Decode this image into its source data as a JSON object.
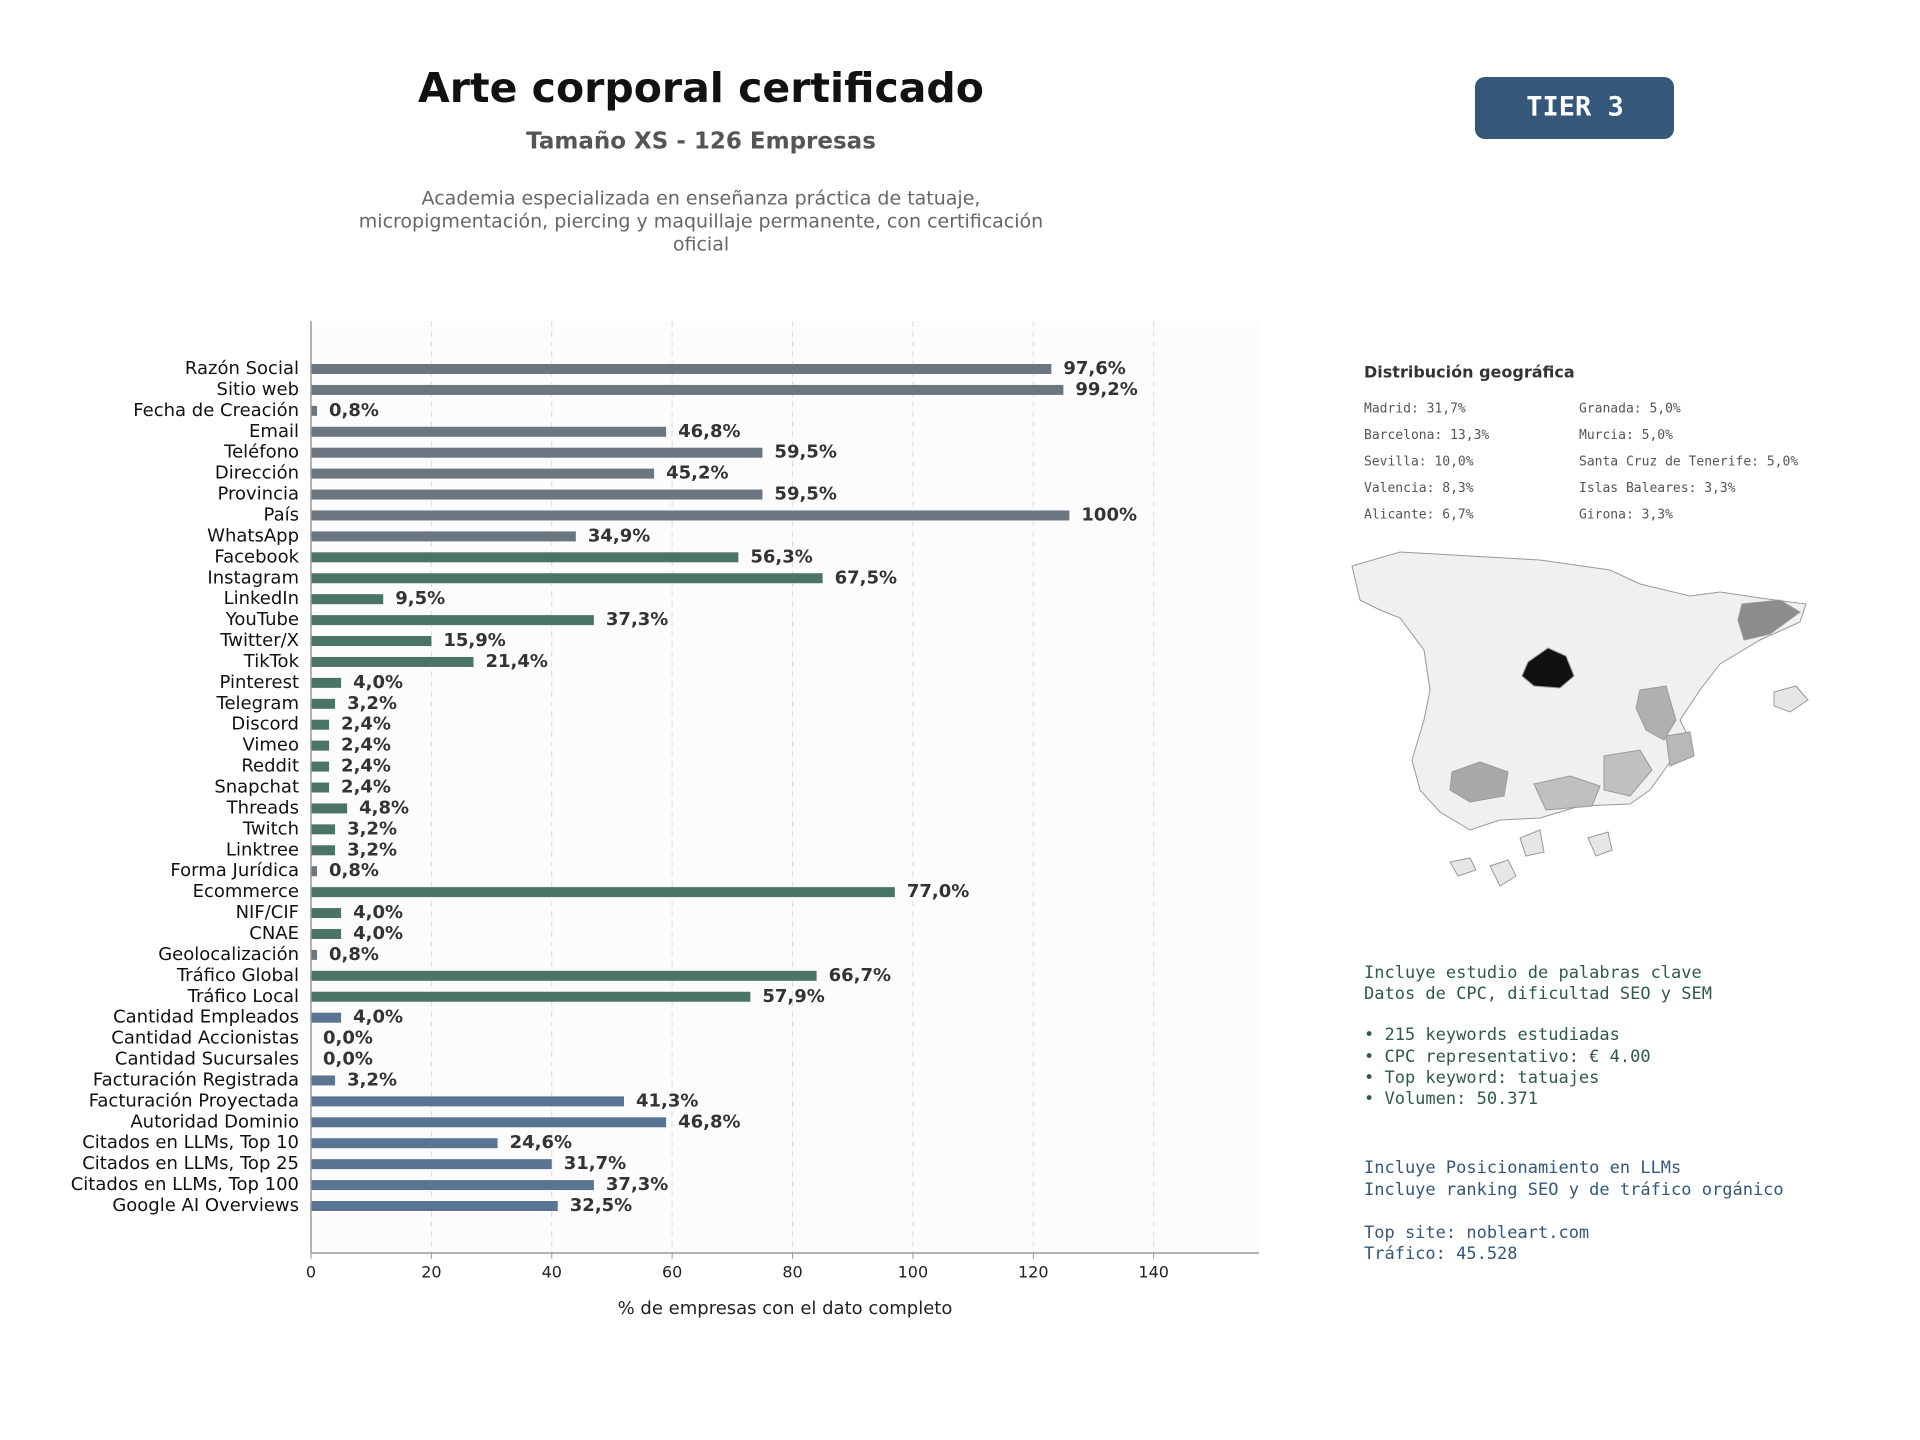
{
  "header": {
    "title": "Arte corporal certificado",
    "subtitle": "Tamaño XS - 126 Empresas",
    "description": [
      "Academia especializada en enseñanza práctica de tatuaje,",
      "micropigmentación, piercing y maquillaje permanente, con certificación",
      "oficial"
    ]
  },
  "badge": "TIER 3",
  "chart_data": {
    "type": "barh",
    "xlabel": "% de empresas con el dato completo",
    "categories": [
      "Razón Social",
      "Sitio web",
      "Fecha de Creación",
      "Email",
      "Teléfono",
      "Dirección",
      "Provincia",
      "País",
      "WhatsApp",
      "Facebook",
      "Instagram",
      "LinkedIn",
      "YouTube",
      "Twitter/X",
      "TikTok",
      "Pinterest",
      "Telegram",
      "Discord",
      "Vimeo",
      "Reddit",
      "Snapchat",
      "Threads",
      "Twitch",
      "Linktree",
      "Forma Jurídica",
      "Ecommerce",
      "NIF/CIF",
      "CNAE",
      "Geolocalización",
      "Tráfico Global",
      "Tráfico Local",
      "Cantidad Empleados",
      "Cantidad Accionistas",
      "Cantidad Sucursales",
      "Facturación Registrada",
      "Facturación Proyectada",
      "Autoridad Dominio",
      "Citados en LLMs, Top 10",
      "Citados en LLMs, Top 25",
      "Citados en LLMs, Top 100",
      "Google AI Overviews"
    ],
    "values": [
      123,
      125,
      1,
      59,
      75,
      57,
      75,
      126,
      44,
      71,
      85,
      12,
      47,
      20,
      27,
      5,
      4,
      3,
      3,
      3,
      3,
      6,
      4,
      4,
      1,
      97,
      5,
      5,
      1,
      84,
      73,
      5,
      0,
      0,
      4,
      52,
      59,
      31,
      40,
      47,
      41
    ],
    "value_labels": [
      "97,6%",
      "99,2%",
      "0,8%",
      "46,8%",
      "59,5%",
      "45,2%",
      "59,5%",
      "100%",
      "34,9%",
      "56,3%",
      "67,5%",
      "9,5%",
      "37,3%",
      "15,9%",
      "21,4%",
      "4,0%",
      "3,2%",
      "2,4%",
      "2,4%",
      "2,4%",
      "2,4%",
      "4,8%",
      "3,2%",
      "3,2%",
      "0,8%",
      "77,0%",
      "4,0%",
      "4,0%",
      "0,8%",
      "66,7%",
      "57,9%",
      "4,0%",
      "0,0%",
      "0,0%",
      "3,2%",
      "41,3%",
      "46,8%",
      "24,6%",
      "31,7%",
      "37,3%",
      "32,5%"
    ],
    "colors": [
      "#6c7680",
      "#6c7680",
      "#6c7680",
      "#6c7680",
      "#6c7680",
      "#6c7680",
      "#6c7680",
      "#6c7680",
      "#6c7680",
      "#4a7566",
      "#4a7566",
      "#4a7566",
      "#4a7566",
      "#4a7566",
      "#4a7566",
      "#4a7566",
      "#4a7566",
      "#4a7566",
      "#4a7566",
      "#4a7566",
      "#4a7566",
      "#4a7566",
      "#4a7566",
      "#4a7566",
      "#6c7680",
      "#4a7566",
      "#4a7566",
      "#4a7566",
      "#6c7680",
      "#4a7566",
      "#4a7566",
      "#5a7593",
      "#5a7593",
      "#5a7593",
      "#5a7593",
      "#5a7593",
      "#5a7593",
      "#5a7593",
      "#5a7593",
      "#5a7593",
      "#5a7593"
    ],
    "xlim": [
      0,
      157.5
    ],
    "xticks": [
      0,
      20,
      40,
      60,
      80,
      100,
      120,
      140
    ],
    "grid": true
  },
  "side_panel": {
    "geo_title": "Distribución geográfica",
    "geo_items": [
      "Madrid: 31,7%",
      "Barcelona: 13,3%",
      "Sevilla: 10,0%",
      "Valencia: 8,3%",
      "Alicante: 6,7%",
      "Granada: 5,0%",
      "Murcia: 5,0%",
      "Santa Cruz de Tenerife: 5,0%",
      "Islas Baleares: 3,3%",
      "Girona: 3,3%"
    ],
    "keywords": [
      "Incluye estudio de palabras clave",
      "Datos de CPC, dificultad SEO y SEM",
      "• 215 keywords estudiadas",
      "• CPC representativo: € 4.00",
      "• Top keyword: tatuajes",
      "• Volumen: 50.371"
    ],
    "llm": [
      "Incluye Posicionamiento en LLMs",
      "Incluye ranking SEO y de tráfico orgánico",
      "Top site: nobleart.com",
      "Tráfico: 45.528"
    ]
  }
}
